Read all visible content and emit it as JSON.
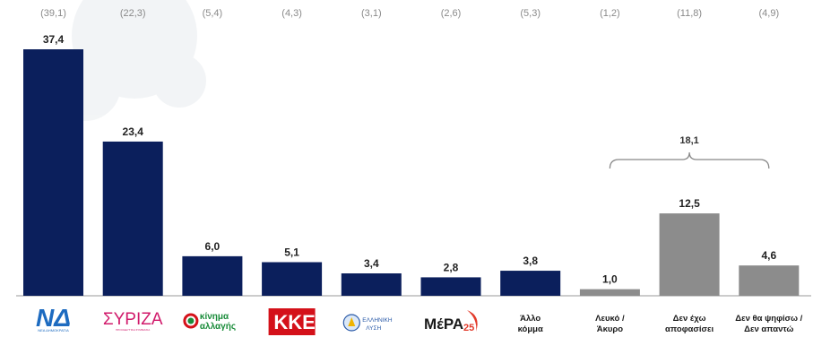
{
  "chart_data": {
    "type": "bar",
    "categories": [
      "Νέα Δημοκρατία",
      "ΣΥΡΙΖΑ",
      "κίνημα αλλαγής",
      "ΚΚΕ",
      "Ελληνική Λύση",
      "ΜέΡΑ25",
      "Άλλο κόμμα",
      "Λευκό / Άκυρο",
      "Δεν έχω αποφασίσει",
      "Δεν θα ψηφίσω / Δεν απαντώ"
    ],
    "values": [
      37.4,
      23.4,
      6.0,
      5.1,
      3.4,
      2.8,
      3.8,
      1.0,
      12.5,
      4.6
    ],
    "value_labels": [
      "37,4",
      "23,4",
      "6,0",
      "5,1",
      "3,4",
      "2,8",
      "3,8",
      "1,0",
      "12,5",
      "4,6"
    ],
    "previous_labels": [
      "(39,1)",
      "(22,3)",
      "(5,4)",
      "(4,3)",
      "(3,1)",
      "(2,6)",
      "(5,3)",
      "(1,2)",
      "(11,8)",
      "(4,9)"
    ],
    "category_text": [
      "",
      "",
      "",
      "",
      "",
      "",
      "Άλλο\nκόμμα",
      "Λευκό /\nΆκυρο",
      "Δεν έχω\nαποφασίσει",
      "Δεν θα ψηφίσω /\nΔεν απαντώ"
    ],
    "bar_colors": [
      "#0b1f5c",
      "#0b1f5c",
      "#0b1f5c",
      "#0b1f5c",
      "#0b1f5c",
      "#0b1f5c",
      "#0b1f5c",
      "#8c8c8c",
      "#8c8c8c",
      "#8c8c8c"
    ],
    "bracket": {
      "label": "18,1",
      "from_index": 7,
      "to_index": 9
    },
    "ylim": [
      0,
      40
    ],
    "grid": false,
    "title": "",
    "xlabel": "",
    "ylabel": ""
  },
  "logos": {
    "nd": {
      "mark": "ΝΔ",
      "sub": "ΝΕΑ ΔΗΜΟΚΡΑΤΙΑ"
    },
    "syriza": {
      "mark": "ΣΥΡΙΖΑ",
      "sub": "ΠΡΟΟΔΕΥΤΙΚΗ ΣΥΜΜΑΧΙΑ"
    },
    "kinal": {
      "line1": "κίνημα",
      "line2": "αλλαγής"
    },
    "kke": {
      "mark": "ΚΚΕ"
    },
    "elliniki": {
      "line1": "ΕΛΛΗΝΙΚΗ",
      "line2": "ΛΥΣΗ"
    },
    "mera": {
      "mark": "ΜέΡΑ",
      "num": "25"
    }
  },
  "colors": {
    "party_bar": "#0b1f5c",
    "other_bar": "#8c8c8c",
    "nd_blue": "#1d6bc0",
    "syriza_pink": "#d11a6b",
    "kke_red": "#d4111a",
    "kinal_green": "#1a8c3a",
    "mera_red": "#e23a2a"
  }
}
